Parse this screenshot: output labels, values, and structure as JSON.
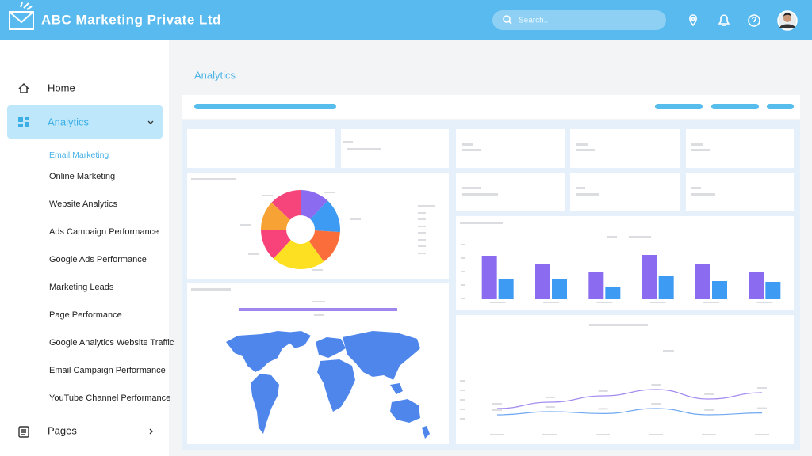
{
  "header": {
    "title": "ABC Marketing Private Ltd",
    "search_placeholder": "Search.."
  },
  "sidebar": {
    "home": "Home",
    "analytics": "Analytics",
    "submenu": [
      "Email Marketing",
      "Online Marketing",
      "Website Analytics",
      "Ads Campaign Performance",
      "Google Ads Performance",
      "Marketing Leads",
      "Page Performance",
      "Google Analytics Website Traffic",
      "Email Campaign Performance",
      "YouTube Channel Performance"
    ],
    "pages": "Pages"
  },
  "main": {
    "heading": "Analytics"
  },
  "chart_data": [
    {
      "type": "pie",
      "values": [
        12,
        14,
        14,
        22,
        13,
        12,
        13
      ],
      "colors": [
        "#8b6cf0",
        "#3d9bf3",
        "#fb6d3a",
        "#fde021",
        "#f7437a",
        "#f7a234",
        "#f5457a"
      ]
    },
    {
      "type": "bar",
      "categories": [
        null,
        null,
        null,
        null,
        null,
        null
      ],
      "series": [
        {
          "color": "#8b6cf0",
          "values": [
            55,
            45,
            34,
            56,
            45,
            34
          ]
        },
        {
          "color": "#3d9bf3",
          "values": [
            25,
            26,
            16,
            30,
            23,
            22
          ]
        }
      ],
      "ylim": [
        0,
        60
      ]
    },
    {
      "type": "line",
      "categories": [
        null,
        null,
        null,
        null,
        null,
        null
      ],
      "series": [
        {
          "color": "#a48bf0",
          "values": [
            3,
            4,
            5,
            6,
            4.5,
            5.5
          ]
        },
        {
          "color": "#6fa8f0",
          "values": [
            2,
            2.5,
            2.2,
            3,
            2,
            2.3
          ]
        }
      ],
      "ylim": [
        0,
        10
      ]
    }
  ]
}
